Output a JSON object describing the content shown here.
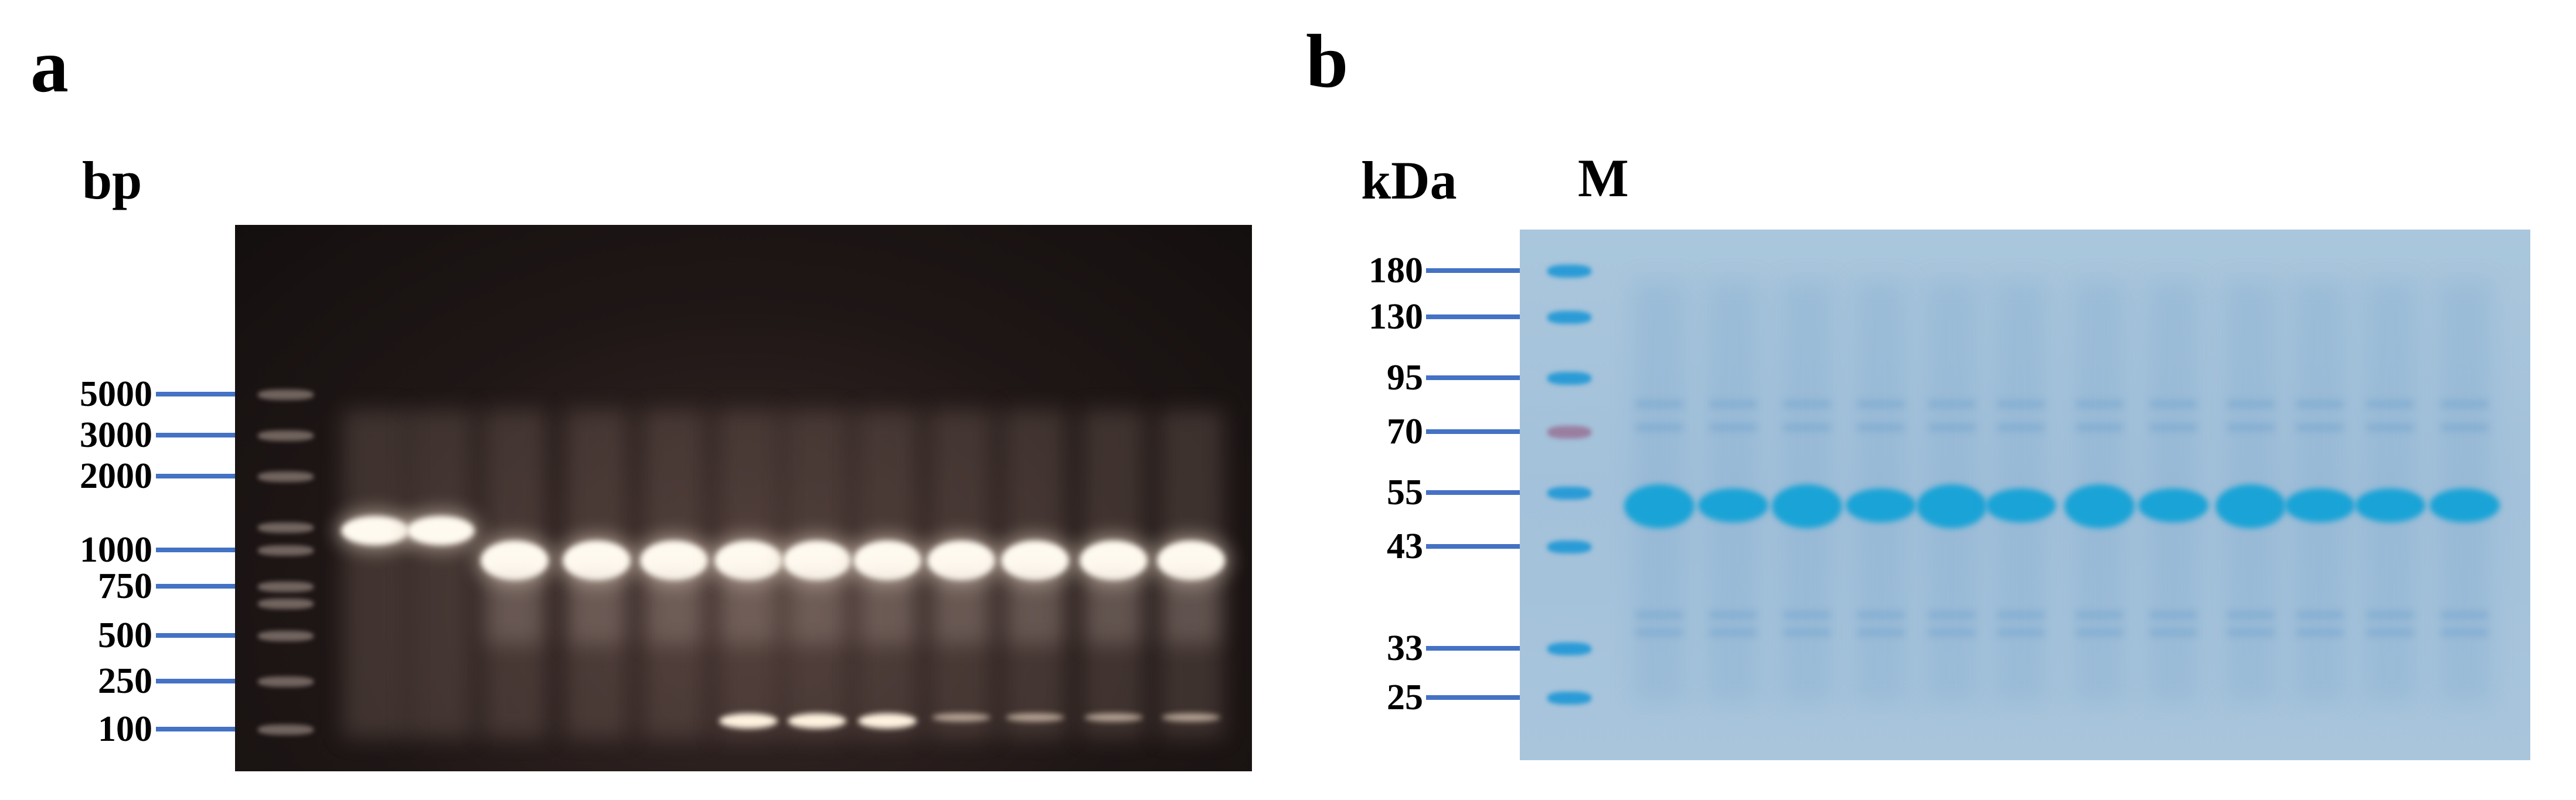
{
  "panel_a": {
    "letter": "a",
    "unit": "bp",
    "markers": [
      "5000",
      "3000",
      "2000",
      "1000",
      "750",
      "500",
      "250",
      "100"
    ],
    "colors": {
      "gel_background": "#1f1716",
      "band": "#fffaf0",
      "marker_line": "#4472c4"
    }
  },
  "panel_b": {
    "letter": "b",
    "unit": "kDa",
    "lane_label": "M",
    "markers": [
      "180",
      "130",
      "95",
      "70",
      "55",
      "43",
      "33",
      "25"
    ],
    "colors": {
      "gel_background": "#a6c3db",
      "band": "#1aa3d6",
      "ladder_70": "#9a7ea0",
      "marker_line": "#4472c4"
    }
  }
}
